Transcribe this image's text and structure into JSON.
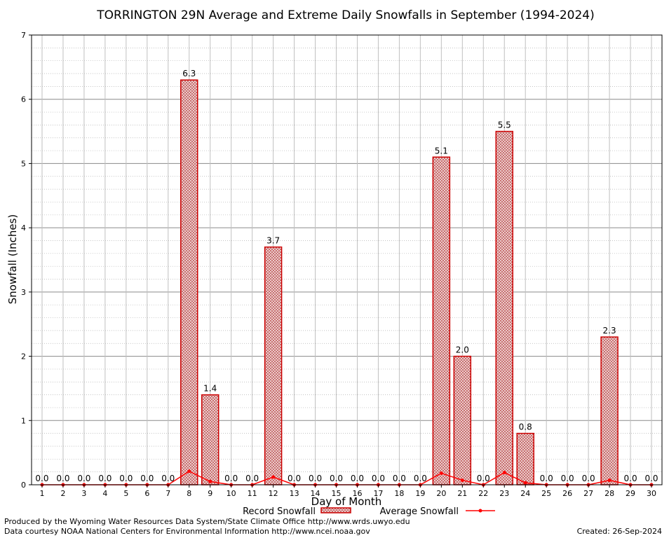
{
  "chart_data": {
    "type": "bar",
    "title": "TORRINGTON 29N Average and Extreme Daily Snowfalls in September (1994-2024)",
    "xlabel": "Day of Month",
    "ylabel": "Snowfall (Inches)",
    "ylim": [
      0,
      7
    ],
    "yticks": [
      "0",
      "1",
      "2",
      "3",
      "4",
      "5",
      "6",
      "7"
    ],
    "categories": [
      "1",
      "2",
      "3",
      "4",
      "5",
      "6",
      "7",
      "8",
      "9",
      "10",
      "11",
      "12",
      "13",
      "14",
      "15",
      "16",
      "17",
      "18",
      "19",
      "20",
      "21",
      "22",
      "23",
      "24",
      "25",
      "26",
      "27",
      "28",
      "29",
      "30"
    ],
    "series": [
      {
        "name": "Record Snowfall",
        "kind": "bar",
        "values": [
          0,
          0,
          0,
          0,
          0,
          0,
          0,
          6.3,
          1.4,
          0,
          0,
          3.7,
          0,
          0,
          0,
          0,
          0,
          0,
          0,
          5.1,
          2.0,
          0,
          5.5,
          0.8,
          0,
          0,
          0,
          2.3,
          0,
          0
        ],
        "labels": [
          "0.0",
          "0.0",
          "0.0",
          "0.0",
          "0.0",
          "0.0",
          "0.0",
          "6.3",
          "1.4",
          "0.0",
          "0.0",
          "3.7",
          "0.0",
          "0.0",
          "0.0",
          "0.0",
          "0.0",
          "0.0",
          "0.0",
          "5.1",
          "2.0",
          "0.0",
          "5.5",
          "0.8",
          "0.0",
          "0.0",
          "0.0",
          "2.3",
          "0.0",
          "0.0"
        ]
      },
      {
        "name": "Average Snowfall",
        "kind": "line",
        "values": [
          0,
          0,
          0,
          0,
          0,
          0,
          0,
          0.21,
          0.05,
          0,
          0,
          0.12,
          0,
          0,
          0,
          0,
          0,
          0,
          0,
          0.18,
          0.07,
          0,
          0.19,
          0.03,
          0,
          0,
          0,
          0.07,
          0,
          0
        ]
      }
    ],
    "grid": true,
    "legend": "bottom",
    "colors": {
      "bar_stroke": "#cc0000",
      "bar_fill": "#ecc8c8",
      "line": "#ff0000",
      "grid": "#b0b0b0"
    }
  },
  "footer": {
    "left_line1": "Produced by the Wyoming Water Resources Data System/State Climate Office http://www.wrds.uwyo.edu",
    "left_line2": "Data courtesy NOAA National Centers for Environmental Information http://www.ncei.noaa.gov",
    "right": "Created:  26-Sep-2024"
  }
}
